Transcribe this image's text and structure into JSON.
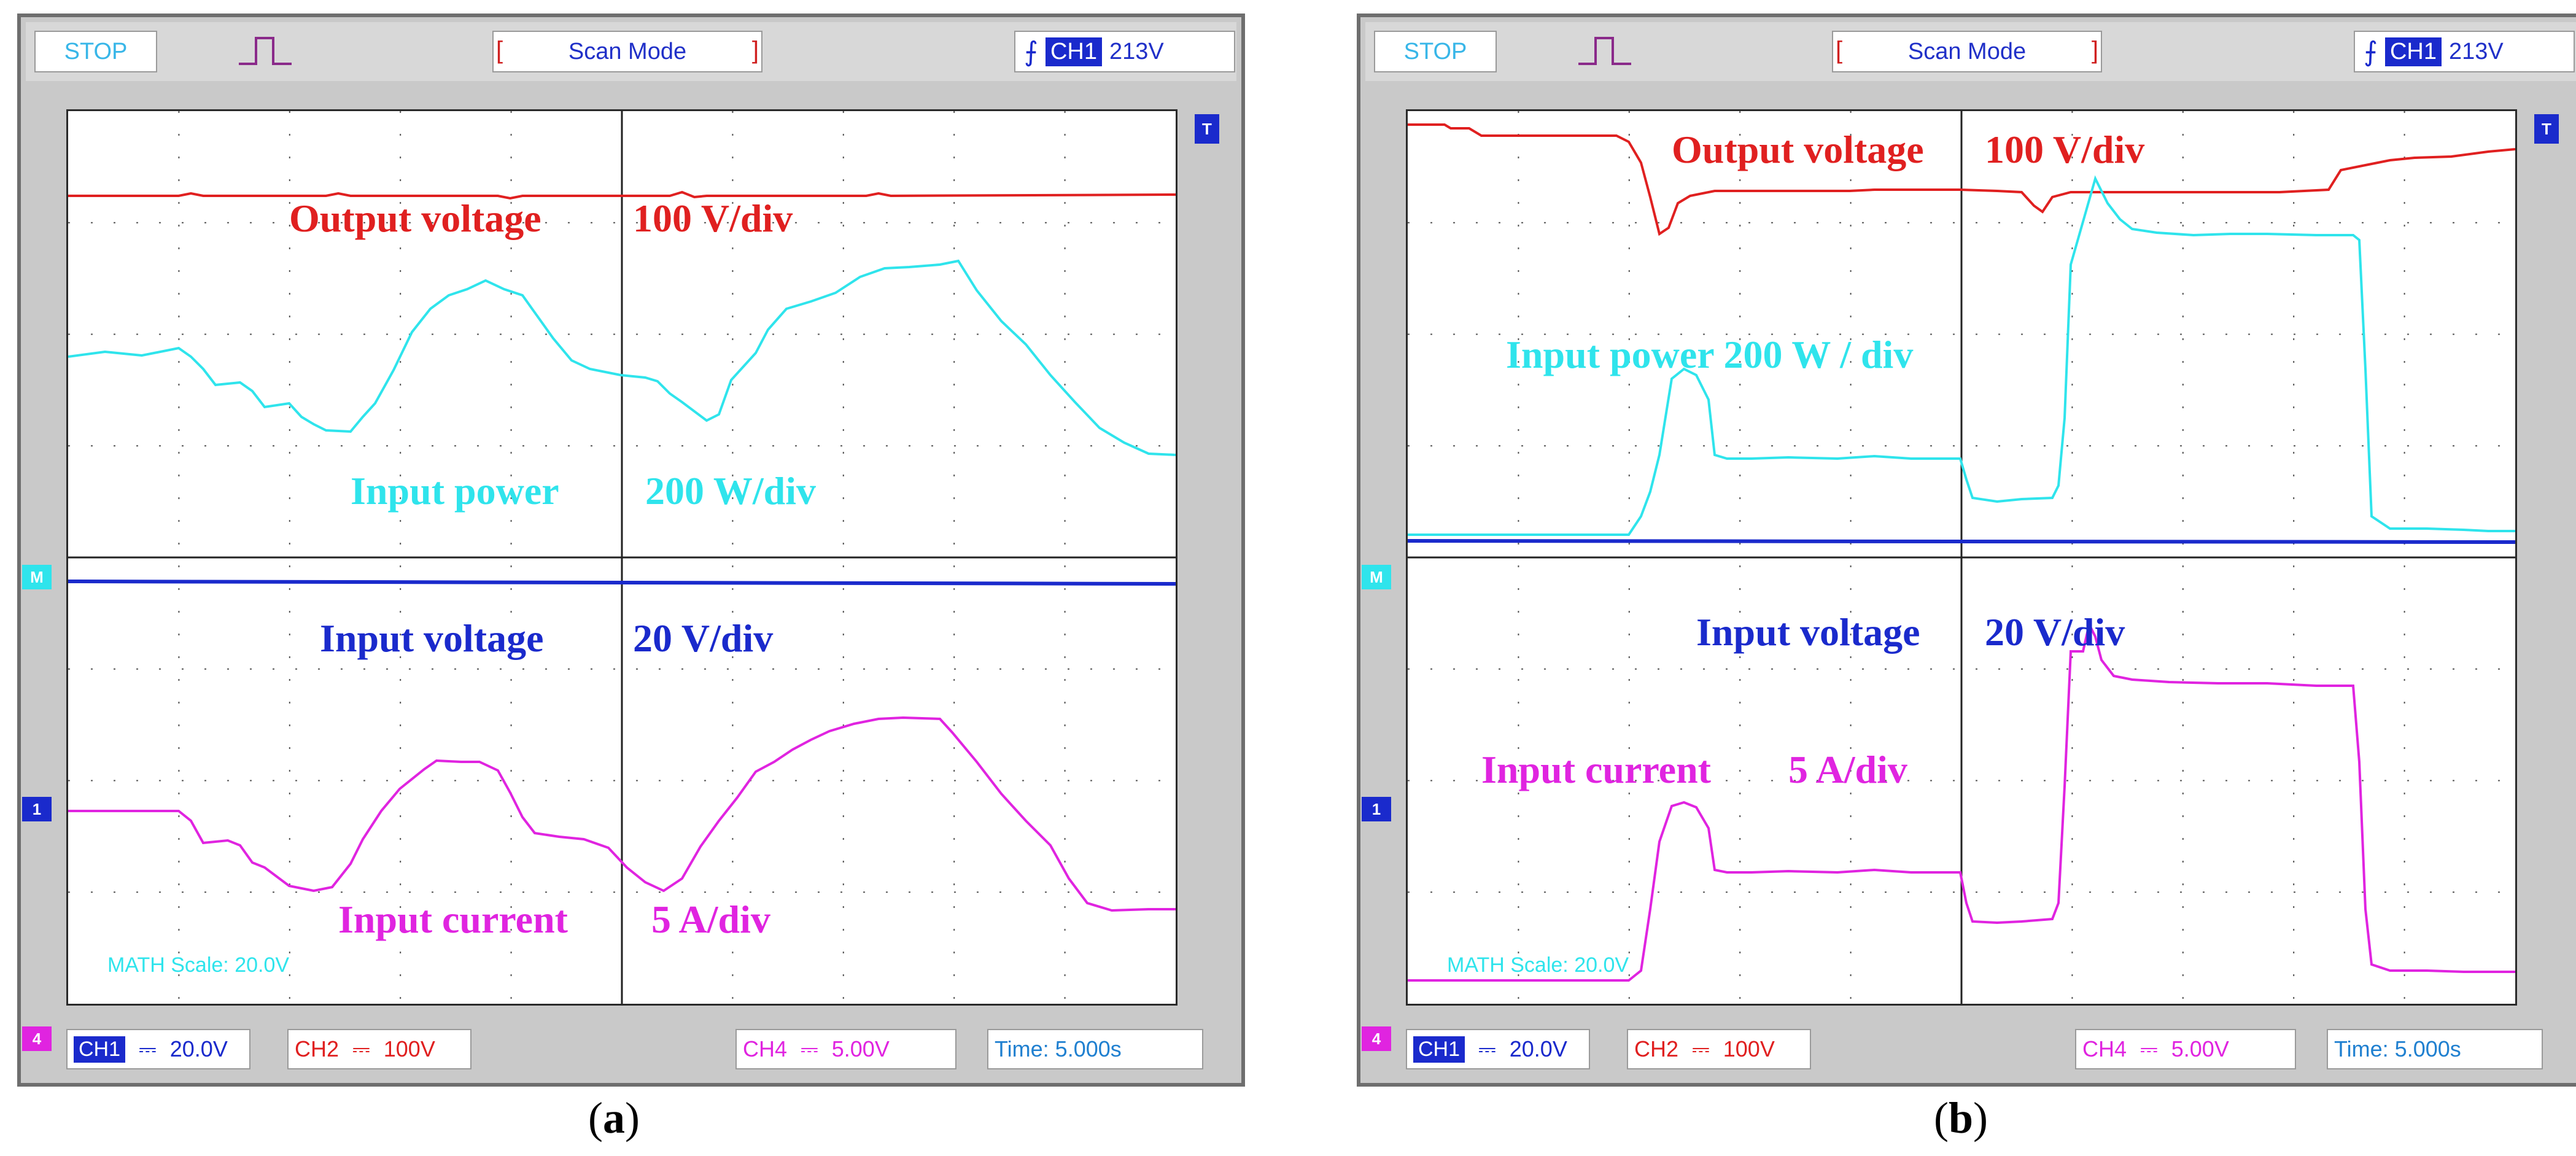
{
  "colors": {
    "output_voltage": "#e02020",
    "input_power": "#2fe4ec",
    "input_voltage": "#1a2acc",
    "input_current": "#e024e0",
    "screen_bg": "#ffffff",
    "frame_bg": "#c9c9c9"
  },
  "panels": [
    {
      "caption_open": "(",
      "caption_letter": "a",
      "caption_close": ")",
      "status": "STOP",
      "mode": "Scan Mode",
      "trigger_channel": "CH1",
      "trigger_level": "213V",
      "labels": {
        "output_voltage": "Output voltage",
        "output_voltage_scale": "100 V/div",
        "input_power": "Input power",
        "input_power_scale": "200 W/div",
        "input_voltage": "Input voltage",
        "input_voltage_scale": "20 V/div",
        "input_current": "Input current",
        "input_current_scale": "5 A/div"
      },
      "math_scale": "MATH Scale:  20.0V",
      "ch1": {
        "name": "CH1",
        "coupling": "⎓",
        "scale": "20.0V"
      },
      "ch2": {
        "name": "CH2",
        "coupling": "⎓",
        "scale": "100V"
      },
      "ch4": {
        "name": "CH4",
        "coupling": "⎓",
        "scale": "5.00V"
      },
      "time": "Time:  5.000s",
      "markers": {
        "math": "M",
        "ch1": "1",
        "ch4": "4",
        "trigger": "T"
      }
    },
    {
      "caption_open": "(",
      "caption_letter": "b",
      "caption_close": ")",
      "status": "STOP",
      "mode": "Scan Mode",
      "trigger_channel": "CH1",
      "trigger_level": "213V",
      "labels": {
        "output_voltage": "Output voltage",
        "output_voltage_scale": "100 V/div",
        "input_power": "Input power 200 W / div",
        "input_voltage": "Input voltage",
        "input_voltage_scale": "20 V/div",
        "input_current": "Input current",
        "input_current_scale": "5 A/div"
      },
      "math_scale": "MATH Scale:  20.0V",
      "ch1": {
        "name": "CH1",
        "coupling": "⎓",
        "scale": "20.0V"
      },
      "ch2": {
        "name": "CH2",
        "coupling": "⎓",
        "scale": "100V"
      },
      "ch4": {
        "name": "CH4",
        "coupling": "⎓",
        "scale": "5.00V"
      },
      "time": "Time:  5.000s",
      "markers": {
        "math": "M",
        "ch1": "1",
        "ch4": "4",
        "trigger": "T"
      }
    }
  ]
}
